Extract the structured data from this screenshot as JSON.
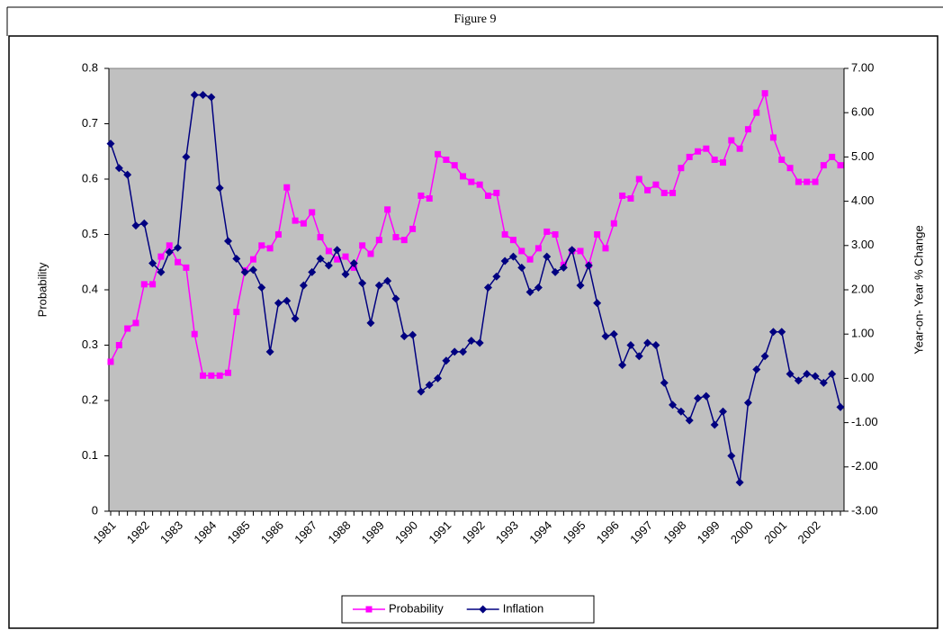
{
  "chart_data": {
    "type": "line",
    "title": "Figure 9",
    "y_label": "Probability",
    "y2_label": "Year-on- Year % Change",
    "categories": [
      "1981",
      null,
      null,
      null,
      "1982",
      null,
      null,
      null,
      "1983",
      null,
      null,
      null,
      "1984",
      null,
      null,
      null,
      "1985",
      null,
      null,
      null,
      "1986",
      null,
      null,
      null,
      "1987",
      null,
      null,
      null,
      "1988",
      null,
      null,
      null,
      "1989",
      null,
      null,
      null,
      "1990",
      null,
      null,
      null,
      "1991",
      null,
      null,
      null,
      "1992",
      null,
      null,
      null,
      "1993",
      null,
      null,
      null,
      "1994",
      null,
      null,
      null,
      "1995",
      null,
      null,
      null,
      "1996",
      null,
      null,
      null,
      "1997",
      null,
      null,
      null,
      "1998",
      null,
      null,
      null,
      "1999",
      null,
      null,
      null,
      "2000",
      null,
      null,
      null,
      "2001",
      null,
      null,
      null,
      "2002",
      null,
      null,
      null
    ],
    "series": [
      {
        "name": "Probability",
        "color": "#ff00ff",
        "marker": "square",
        "values": [
          0.27,
          0.3,
          0.33,
          0.34,
          0.41,
          0.41,
          0.46,
          0.48,
          0.45,
          0.44,
          0.32,
          0.245,
          0.245,
          0.245,
          0.25,
          0.36,
          0.435,
          0.455,
          0.48,
          0.475,
          0.5,
          0.585,
          0.525,
          0.52,
          0.54,
          0.495,
          0.47,
          0.455,
          0.46,
          0.44,
          0.48,
          0.465,
          0.49,
          0.545,
          0.495,
          0.49,
          0.51,
          0.57,
          0.565,
          0.645,
          0.635,
          0.625,
          0.605,
          0.595,
          0.59,
          0.57,
          0.575,
          0.5,
          0.49,
          0.47,
          0.455,
          0.475,
          0.505,
          0.5,
          0.445,
          0.47,
          0.47,
          0.445,
          0.5,
          0.475,
          0.52,
          0.57,
          0.565,
          0.6,
          0.58,
          0.59,
          0.575,
          0.575,
          0.62,
          0.64,
          0.65,
          0.655,
          0.635,
          0.63,
          0.67,
          0.655,
          0.69,
          0.72,
          0.755,
          0.675,
          0.635,
          0.62,
          0.595,
          0.595,
          0.595,
          0.625,
          0.64,
          0.625
        ]
      },
      {
        "name": "Inflation",
        "color": "#000080",
        "marker": "diamond",
        "axis": "y2",
        "values": [
          5.3,
          4.75,
          4.6,
          3.45,
          3.5,
          2.6,
          2.4,
          2.85,
          2.95,
          5.0,
          6.4,
          6.4,
          6.35,
          4.3,
          3.1,
          2.7,
          2.4,
          2.45,
          2.05,
          0.6,
          1.7,
          1.75,
          1.35,
          2.1,
          2.4,
          2.7,
          2.55,
          2.9,
          2.35,
          2.6,
          2.15,
          1.25,
          2.1,
          2.2,
          1.8,
          0.95,
          0.98,
          -0.3,
          -0.15,
          0.0,
          0.4,
          0.6,
          0.6,
          0.85,
          0.8,
          2.05,
          2.3,
          2.65,
          2.75,
          2.5,
          1.95,
          2.05,
          2.75,
          2.4,
          2.5,
          2.9,
          2.1,
          2.55,
          1.7,
          0.95,
          1.0,
          0.3,
          0.75,
          0.5,
          0.8,
          0.75,
          -0.1,
          -0.6,
          -0.75,
          -0.95,
          -0.45,
          -0.4,
          -1.05,
          -0.75,
          -1.75,
          -2.35,
          -0.55,
          0.2,
          0.5,
          1.05,
          1.05,
          0.1,
          -0.05,
          0.1,
          0.05,
          -0.1,
          0.1,
          -0.65
        ]
      }
    ],
    "ylim": [
      0,
      0.8
    ],
    "yticks": [
      0,
      0.1,
      0.2,
      0.3,
      0.4,
      0.5,
      0.6,
      0.7,
      0.8
    ],
    "y2lim": [
      -3,
      7
    ],
    "y2ticks": [
      {
        "value": -3,
        "label": "-3.00"
      },
      {
        "value": -2,
        "label": "-2.00"
      },
      {
        "value": -1,
        "label": "-1.00"
      },
      {
        "value": 0,
        "label": "0.00"
      },
      {
        "value": 1,
        "label": "1.00"
      },
      {
        "value": 2,
        "label": "2.00"
      },
      {
        "value": 3,
        "label": "3.00"
      },
      {
        "value": 4,
        "label": "4.00"
      },
      {
        "value": 5,
        "label": "5.00"
      },
      {
        "value": 6,
        "label": "6.00"
      },
      {
        "value": 7,
        "label": "7.00"
      }
    ],
    "plot_background": "#c0c0c0",
    "legend": "bottom"
  }
}
